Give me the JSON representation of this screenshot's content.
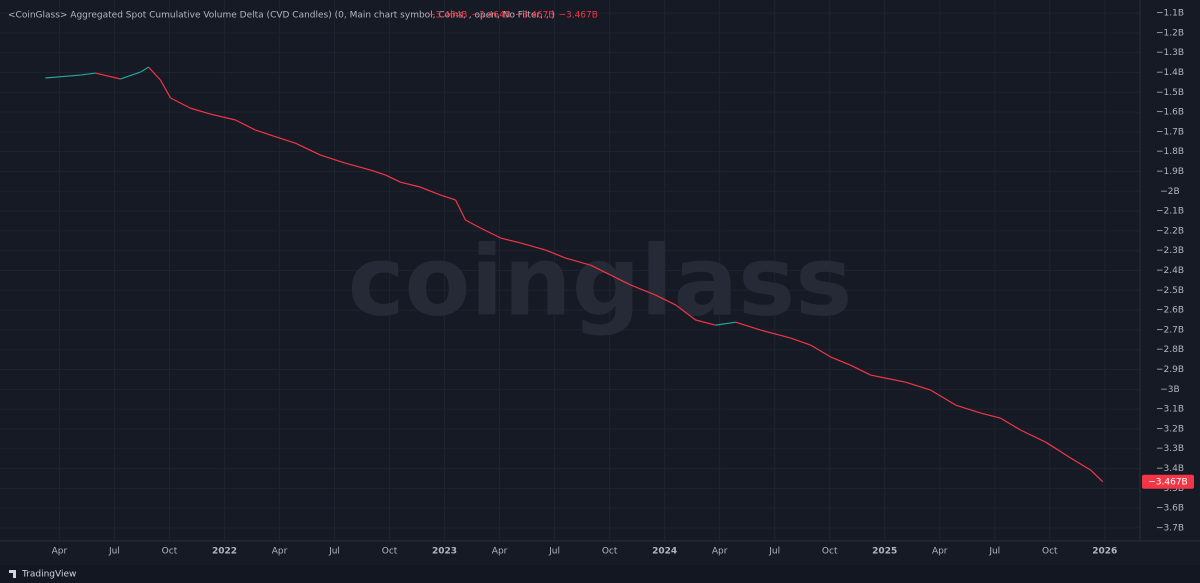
{
  "chart_data": {
    "type": "line",
    "title": "<CoinGlass> Aggregated Spot Cumulative Volume Delta (CVD Candles) (0, Main chart symbol, Coins, , open, No Filter, , )",
    "ohlc": [
      "−3.464B",
      "−3.464B",
      "−3.467B",
      "−3.467B"
    ],
    "watermark": "coinglass",
    "brand": "TradingView",
    "up_color": "#26a69a",
    "down_color": "#f23645",
    "last_price": {
      "value": -3.467,
      "label": "−3.467B"
    },
    "x": [
      2021.186,
      2021.345,
      2021.414,
      2021.527,
      2021.618,
      2021.655,
      2021.709,
      2021.755,
      2021.845,
      2021.936,
      2022.05,
      2022.141,
      2022.209,
      2022.323,
      2022.436,
      2022.55,
      2022.664,
      2022.732,
      2022.8,
      2022.891,
      2022.982,
      2023.05,
      2023.095,
      2023.164,
      2023.255,
      2023.345,
      2023.459,
      2023.55,
      2023.664,
      2023.755,
      2023.845,
      2023.959,
      2024.05,
      2024.141,
      2024.232,
      2024.323,
      2024.436,
      2024.573,
      2024.664,
      2024.755,
      2024.845,
      2024.936,
      2025.095,
      2025.209,
      2025.323,
      2025.436,
      2025.527,
      2025.618,
      2025.732,
      2025.845,
      2025.936,
      2025.991
    ],
    "values": [
      -1.428,
      -1.413,
      -1.403,
      -1.433,
      -1.398,
      -1.373,
      -1.438,
      -1.529,
      -1.58,
      -1.61,
      -1.64,
      -1.691,
      -1.716,
      -1.757,
      -1.817,
      -1.858,
      -1.893,
      -1.918,
      -1.954,
      -1.979,
      -2.019,
      -2.044,
      -2.145,
      -2.186,
      -2.236,
      -2.261,
      -2.297,
      -2.337,
      -2.373,
      -2.423,
      -2.473,
      -2.524,
      -2.574,
      -2.65,
      -2.676,
      -2.661,
      -2.701,
      -2.741,
      -2.777,
      -2.837,
      -2.878,
      -2.928,
      -2.964,
      -3.004,
      -3.08,
      -3.12,
      -3.146,
      -3.206,
      -3.267,
      -3.347,
      -3.408,
      -3.467
    ],
    "xlim": [
      2020.98,
      2026.16
    ],
    "ylim": [
      -3.766,
      -1.034
    ],
    "grid": true,
    "xticks": [
      {
        "value": 2021.25,
        "label": "Apr"
      },
      {
        "value": 2021.5,
        "label": "Jul"
      },
      {
        "value": 2021.75,
        "label": "Oct"
      },
      2022,
      {
        "value": 2022.25,
        "label": "Apr"
      },
      {
        "value": 2022.5,
        "label": "Jul"
      },
      {
        "value": 2022.75,
        "label": "Oct"
      },
      2023,
      {
        "value": 2023.25,
        "label": "Apr"
      },
      {
        "value": 2023.5,
        "label": "Jul"
      },
      {
        "value": 2023.75,
        "label": "Oct"
      },
      2024,
      {
        "value": 2024.25,
        "label": "Apr"
      },
      {
        "value": 2024.5,
        "label": "Jul"
      },
      {
        "value": 2024.75,
        "label": "Oct"
      },
      2025,
      {
        "value": 2025.25,
        "label": "Apr"
      },
      {
        "value": 2025.5,
        "label": "Jul"
      },
      {
        "value": 2025.75,
        "label": "Oct"
      },
      2026
    ],
    "yticks": [
      {
        "value": -1.1,
        "label": "−1.1B"
      },
      {
        "value": -1.2,
        "label": "−1.2B"
      },
      {
        "value": -1.3,
        "label": "−1.3B"
      },
      {
        "value": -1.4,
        "label": "−1.4B"
      },
      {
        "value": -1.5,
        "label": "−1.5B"
      },
      {
        "value": -1.6,
        "label": "−1.6B"
      },
      {
        "value": -1.7,
        "label": "−1.7B"
      },
      {
        "value": -1.8,
        "label": "−1.8B"
      },
      {
        "value": -1.9,
        "label": "−1.9B"
      },
      {
        "value": -2.0,
        "label": "−2B"
      },
      {
        "value": -2.1,
        "label": "−2.1B"
      },
      {
        "value": -2.2,
        "label": "−2.2B"
      },
      {
        "value": -2.3,
        "label": "−2.3B"
      },
      {
        "value": -2.4,
        "label": "−2.4B"
      },
      {
        "value": -2.5,
        "label": "−2.5B"
      },
      {
        "value": -2.6,
        "label": "−2.6B"
      },
      {
        "value": -2.7,
        "label": "−2.7B"
      },
      {
        "value": -2.8,
        "label": "−2.8B"
      },
      {
        "value": -2.9,
        "label": "−2.9B"
      },
      {
        "value": -3.0,
        "label": "−3B"
      },
      {
        "value": -3.1,
        "label": "−3.1B"
      },
      {
        "value": -3.2,
        "label": "−3.2B"
      },
      {
        "value": -3.3,
        "label": "−3.3B"
      },
      {
        "value": -3.4,
        "label": "−3.4B"
      },
      {
        "value": -3.5,
        "label": "−3.5B"
      },
      {
        "value": -3.6,
        "label": "−3.6B"
      },
      {
        "value": -3.7,
        "label": "−3.7B"
      }
    ]
  }
}
